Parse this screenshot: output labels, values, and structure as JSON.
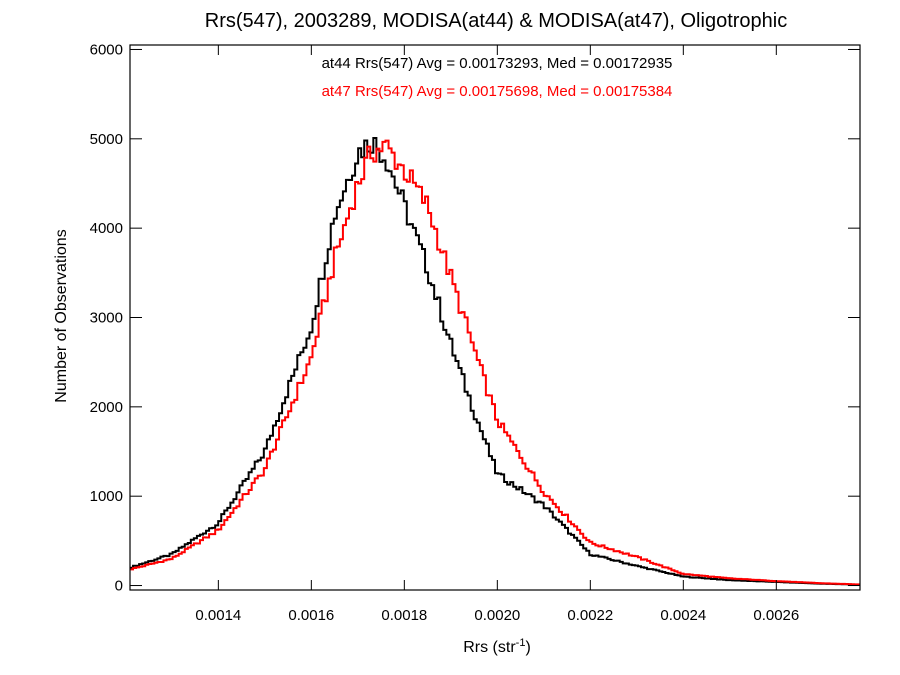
{
  "chart_data": {
    "type": "line",
    "title": "Rrs(547), 2003289, MODISA(at44) & MODISA(at47), Oligotrophic",
    "xlabel_main": "Rrs (str",
    "xlabel_sup": "-1",
    "xlabel_close": ")",
    "ylabel": "Number of Observations",
    "xlim": [
      0.00121,
      0.00278
    ],
    "ylim": [
      -50,
      6050
    ],
    "x_ticks": [
      0.0014,
      0.0016,
      0.0018,
      0.002,
      0.0022,
      0.0024,
      0.0026
    ],
    "x_tick_labels": [
      "0.0014",
      "0.0016",
      "0.0018",
      "0.0020",
      "0.0022",
      "0.0024",
      "0.0026"
    ],
    "y_ticks": [
      0,
      1000,
      2000,
      3000,
      4000,
      5000,
      6000
    ],
    "y_tick_labels": [
      "0",
      "1000",
      "2000",
      "3000",
      "4000",
      "5000",
      "6000"
    ],
    "grid": false,
    "annotations": [
      {
        "text": "at44 Rrs(547) Avg = 0.00173293, Med = 0.00172935",
        "color": "#000000"
      },
      {
        "text": "at47 Rrs(547) Avg = 0.00175698, Med = 0.00175384",
        "color": "#ff0000"
      }
    ],
    "series": [
      {
        "color": "#000000",
        "x": [
          0.00121,
          0.0013,
          0.0014,
          0.0015,
          0.0016,
          0.00165,
          0.0017,
          0.00173,
          0.00176,
          0.0018,
          0.00185,
          0.0019,
          0.00195,
          0.002,
          0.0021,
          0.0022,
          0.0023,
          0.0024,
          0.0025,
          0.0026,
          0.0027,
          0.00278
        ],
        "y": [
          200,
          350,
          700,
          1500,
          2900,
          4150,
          4850,
          4980,
          4800,
          4250,
          3550,
          2700,
          1950,
          1250,
          900,
          350,
          220,
          100,
          60,
          40,
          20,
          10
        ]
      },
      {
        "color": "#ff0000",
        "x": [
          0.00121,
          0.0013,
          0.0014,
          0.0015,
          0.0016,
          0.00165,
          0.0017,
          0.00173,
          0.00176,
          0.0018,
          0.00185,
          0.0019,
          0.00195,
          0.002,
          0.0021,
          0.0022,
          0.0023,
          0.0024,
          0.0025,
          0.0026,
          0.0027,
          0.00278
        ],
        "y": [
          180,
          300,
          620,
          1300,
          2550,
          3650,
          4500,
          4850,
          4920,
          4650,
          4250,
          3450,
          2650,
          1850,
          1050,
          480,
          320,
          130,
          80,
          50,
          25,
          12
        ]
      }
    ]
  }
}
